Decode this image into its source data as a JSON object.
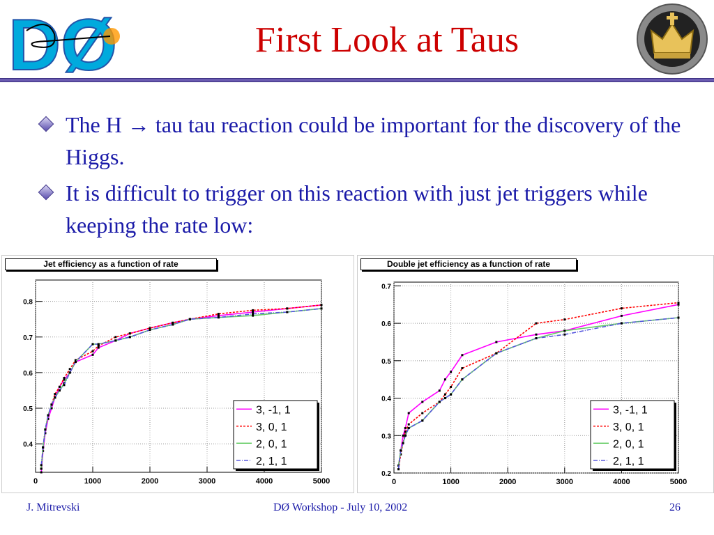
{
  "slide": {
    "title": "First Look at Taus",
    "bullets": [
      "The H → tau tau reaction could be important for the discovery of the Higgs.",
      "It is difficult to trigger on this reaction with just jet triggers while keeping the rate low:"
    ],
    "logo_left_text": "DØ"
  },
  "footer": {
    "author": "J. Mitrevski",
    "event": "DØ Workshop - July 10, 2002",
    "page": "26"
  },
  "colors": {
    "title": "#cc0000",
    "text": "#1a1aa8",
    "rule": "#6a5bb0"
  },
  "chart_data": [
    {
      "type": "line",
      "title": "Jet efficiency as a function of rate",
      "xlim": [
        0,
        5000
      ],
      "ylim": [
        0.32,
        0.86
      ],
      "xticks": [
        0,
        1000,
        2000,
        3000,
        4000,
        5000
      ],
      "yticks": [
        0.4,
        0.5,
        0.6,
        0.7,
        0.8
      ],
      "legend": "bottom-right",
      "grid": true,
      "series": [
        {
          "name": "3, -1, 1",
          "color": "#ff00ff",
          "dash": "",
          "x": [
            100,
            130,
            170,
            220,
            280,
            340,
            420,
            500,
            600,
            700,
            1000,
            1100,
            1400,
            1650,
            2000,
            2400,
            2700,
            3200,
            3800,
            4400,
            5000
          ],
          "y": [
            0.32,
            0.38,
            0.43,
            0.47,
            0.5,
            0.53,
            0.56,
            0.58,
            0.6,
            0.63,
            0.65,
            0.67,
            0.69,
            0.71,
            0.725,
            0.74,
            0.75,
            0.76,
            0.77,
            0.78,
            0.79
          ]
        },
        {
          "name": "3, 0, 1",
          "color": "#ff0000",
          "dash": "3,2",
          "x": [
            100,
            130,
            170,
            220,
            280,
            340,
            420,
            500,
            600,
            700,
            1000,
            1100,
            1400,
            1650,
            2000,
            2400,
            2700,
            3200,
            3800,
            4400,
            5000
          ],
          "y": [
            0.33,
            0.39,
            0.44,
            0.48,
            0.51,
            0.54,
            0.56,
            0.585,
            0.61,
            0.635,
            0.66,
            0.675,
            0.7,
            0.71,
            0.725,
            0.74,
            0.75,
            0.765,
            0.775,
            0.78,
            0.79
          ]
        },
        {
          "name": "2, 0, 1",
          "color": "#66cc66",
          "dash": "",
          "x": [
            100,
            130,
            170,
            220,
            280,
            340,
            420,
            500,
            600,
            700,
            1000,
            1100,
            1400,
            1650,
            2000,
            2400,
            2700,
            3200,
            3800,
            4400,
            5000
          ],
          "y": [
            0.33,
            0.39,
            0.44,
            0.48,
            0.51,
            0.53,
            0.55,
            0.57,
            0.6,
            0.63,
            0.68,
            0.68,
            0.69,
            0.7,
            0.72,
            0.735,
            0.75,
            0.755,
            0.76,
            0.77,
            0.78
          ]
        },
        {
          "name": "2, 1, 1",
          "color": "#5555dd",
          "dash": "6,2,1,2",
          "x": [
            100,
            130,
            170,
            220,
            280,
            340,
            420,
            500,
            600,
            700,
            1000,
            1100,
            1400,
            1650,
            2000,
            2400,
            2700,
            3200,
            3800,
            4400,
            5000
          ],
          "y": [
            0.34,
            0.39,
            0.44,
            0.48,
            0.51,
            0.53,
            0.55,
            0.565,
            0.6,
            0.63,
            0.68,
            0.68,
            0.69,
            0.7,
            0.72,
            0.735,
            0.75,
            0.755,
            0.765,
            0.77,
            0.78
          ]
        }
      ]
    },
    {
      "type": "line",
      "title": "Double jet efficiency as a function of rate",
      "xlim": [
        0,
        5000
      ],
      "ylim": [
        0.2,
        0.71
      ],
      "xticks": [
        0,
        1000,
        2000,
        3000,
        4000,
        5000
      ],
      "yticks": [
        0.2,
        0.3,
        0.4,
        0.5,
        0.6,
        0.7
      ],
      "legend": "bottom-right",
      "grid": true,
      "series": [
        {
          "name": "3, -1, 1",
          "color": "#ff00ff",
          "dash": "",
          "x": [
            80,
            120,
            160,
            200,
            260,
            500,
            800,
            900,
            1000,
            1200,
            1800,
            2500,
            3000,
            4000,
            5000
          ],
          "y": [
            0.22,
            0.26,
            0.3,
            0.32,
            0.36,
            0.39,
            0.42,
            0.45,
            0.47,
            0.515,
            0.55,
            0.57,
            0.58,
            0.62,
            0.65
          ]
        },
        {
          "name": "3, 0, 1",
          "color": "#ff0000",
          "dash": "3,2",
          "x": [
            80,
            120,
            160,
            200,
            260,
            500,
            800,
            900,
            1000,
            1200,
            1800,
            2500,
            3000,
            4000,
            5000
          ],
          "y": [
            0.21,
            0.25,
            0.28,
            0.31,
            0.33,
            0.36,
            0.39,
            0.41,
            0.43,
            0.48,
            0.52,
            0.6,
            0.61,
            0.64,
            0.655
          ]
        },
        {
          "name": "2, 0, 1",
          "color": "#66cc66",
          "dash": "",
          "x": [
            80,
            120,
            160,
            200,
            260,
            500,
            800,
            900,
            1000,
            1200,
            1800,
            2500,
            3000,
            4000,
            5000
          ],
          "y": [
            0.22,
            0.26,
            0.28,
            0.3,
            0.32,
            0.34,
            0.39,
            0.4,
            0.41,
            0.45,
            0.52,
            0.56,
            0.58,
            0.6,
            0.615
          ]
        },
        {
          "name": "2, 1, 1",
          "color": "#5555dd",
          "dash": "6,2,1,2",
          "x": [
            80,
            120,
            160,
            200,
            260,
            500,
            800,
            900,
            1000,
            1200,
            1800,
            2500,
            3000,
            4000,
            5000
          ],
          "y": [
            0.21,
            0.26,
            0.28,
            0.3,
            0.32,
            0.34,
            0.39,
            0.4,
            0.41,
            0.45,
            0.52,
            0.56,
            0.57,
            0.6,
            0.615
          ]
        }
      ]
    }
  ]
}
